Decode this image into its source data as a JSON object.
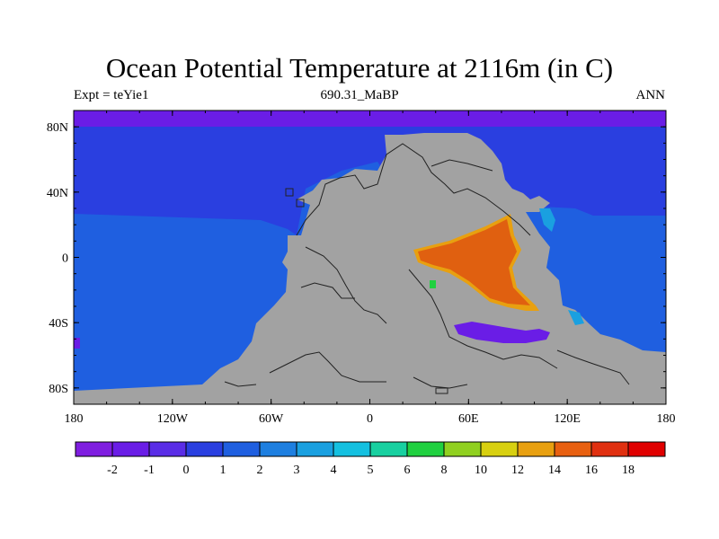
{
  "title": "Ocean Potential Temperature at 2116m (in C)",
  "subtitle_left": "Expt = teYie1",
  "subtitle_center": "690.31_MaBP",
  "subtitle_right": "ANN",
  "lat_labels": [
    "80N",
    "40N",
    "0",
    "40S",
    "80S"
  ],
  "lon_labels": [
    "180",
    "120W",
    "60W",
    "0",
    "60E",
    "120E",
    "180"
  ],
  "colorbar": {
    "colors": [
      "#7f1ee0",
      "#6a1de6",
      "#5a2de6",
      "#2a3fe0",
      "#1f5fe0",
      "#1e7fe0",
      "#1aa0e0",
      "#14c0e0",
      "#18d0a0",
      "#20d040",
      "#90d020",
      "#d8d010",
      "#e8a010",
      "#e86010",
      "#e03010",
      "#e00000"
    ],
    "labels": [
      "-2",
      "-1",
      "0",
      "1",
      "2",
      "3",
      "4",
      "5",
      "6",
      "8",
      "10",
      "12",
      "14",
      "16",
      "18"
    ]
  },
  "map_colors": {
    "land": "#a2a2a2",
    "polar_ocean": "#6a1de6",
    "deep_ocean": "#2a3fe0",
    "mid_ocean": "#1f5fe0",
    "cyan_patch": "#1aa0e0",
    "warm_sea": "#e06010",
    "warm_edge": "#e8a010",
    "green_spot": "#20d040"
  }
}
